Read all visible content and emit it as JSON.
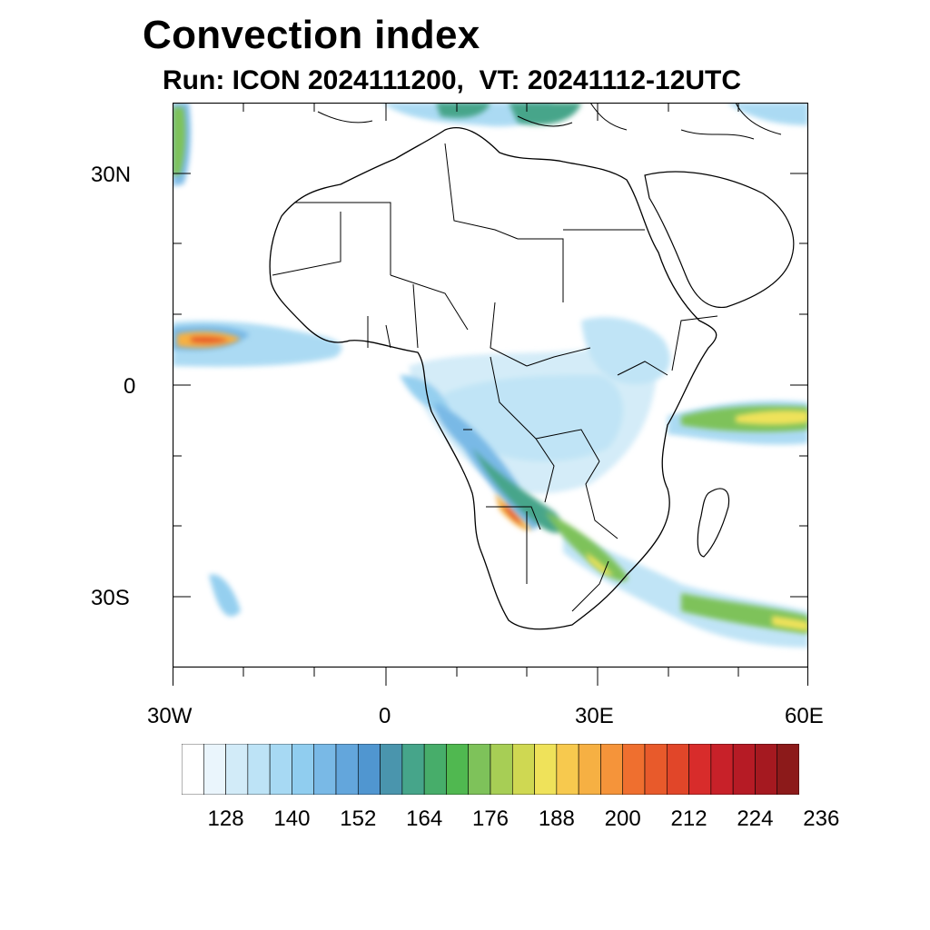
{
  "title": "Convection index",
  "subtitle": "Run: ICON 2024111200,  VT: 20241112-12UTC",
  "map": {
    "region": "Africa",
    "lon_range": [
      -30,
      60
    ],
    "lat_range": [
      -40,
      40
    ],
    "x_ticks": [
      {
        "label": "30W",
        "lon": -30
      },
      {
        "label": "0",
        "lon": 0
      },
      {
        "label": "30E",
        "lon": 30
      },
      {
        "label": "60E",
        "lon": 60
      }
    ],
    "y_ticks": [
      {
        "label": "30N",
        "lat": 30
      },
      {
        "label": "0",
        "lat": 0
      },
      {
        "label": "30S",
        "lat": -30
      }
    ],
    "colors": {
      "boundary": "#000000",
      "background": "#ffffff"
    }
  },
  "colorbar": {
    "labels": [
      "128",
      "140",
      "152",
      "164",
      "176",
      "188",
      "200",
      "212",
      "224",
      "236"
    ],
    "colors": [
      "#ffffff",
      "#eaf5fc",
      "#d2ebf8",
      "#bde3f6",
      "#a7d9f3",
      "#90cdef",
      "#79b9e6",
      "#63a6dc",
      "#5096d0",
      "#4a95ad",
      "#46a58a",
      "#47ad6a",
      "#50b850",
      "#7ec25a",
      "#a7ce55",
      "#cfd852",
      "#efe25a",
      "#f7c94e",
      "#f6b043",
      "#f5943a",
      "#ef6f2f",
      "#e85a2b",
      "#e14629",
      "#d82c2b",
      "#c82129",
      "#b61b25",
      "#a51920",
      "#8c1a1a"
    ]
  }
}
